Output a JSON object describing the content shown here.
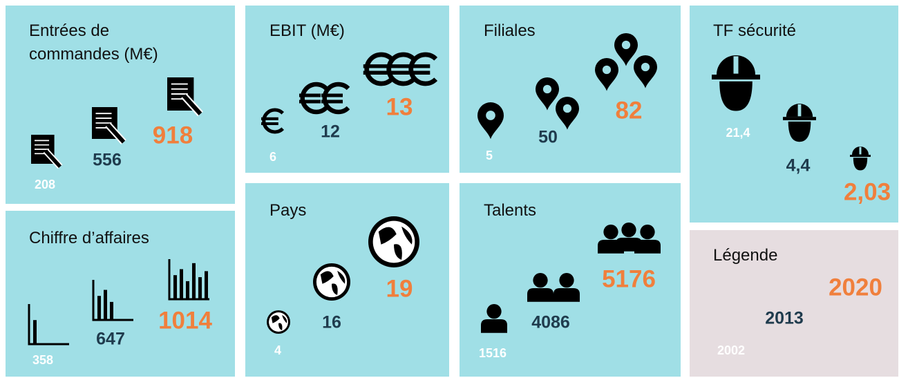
{
  "tiles": [
    {
      "title": "Entrées de commandes (M€)",
      "values": [
        "208",
        "556",
        "918"
      ]
    },
    {
      "title": "Chiffre d’affaires",
      "values": [
        "358",
        "647",
        "1014"
      ]
    },
    {
      "title": "EBIT (M€)",
      "values": [
        "6",
        "12",
        "13"
      ]
    },
    {
      "title": "Pays",
      "values": [
        "4",
        "16",
        "19"
      ]
    },
    {
      "title": "Filiales",
      "values": [
        "5",
        "50",
        "82"
      ]
    },
    {
      "title": "Talents",
      "values": [
        "1516",
        "4086",
        "5176"
      ]
    },
    {
      "title": "TF sécurité",
      "values": [
        "21,4",
        "4,4",
        "2,03"
      ]
    }
  ],
  "legend": {
    "title": "Légende",
    "values": [
      "2002",
      "2013",
      "2020"
    ]
  }
}
